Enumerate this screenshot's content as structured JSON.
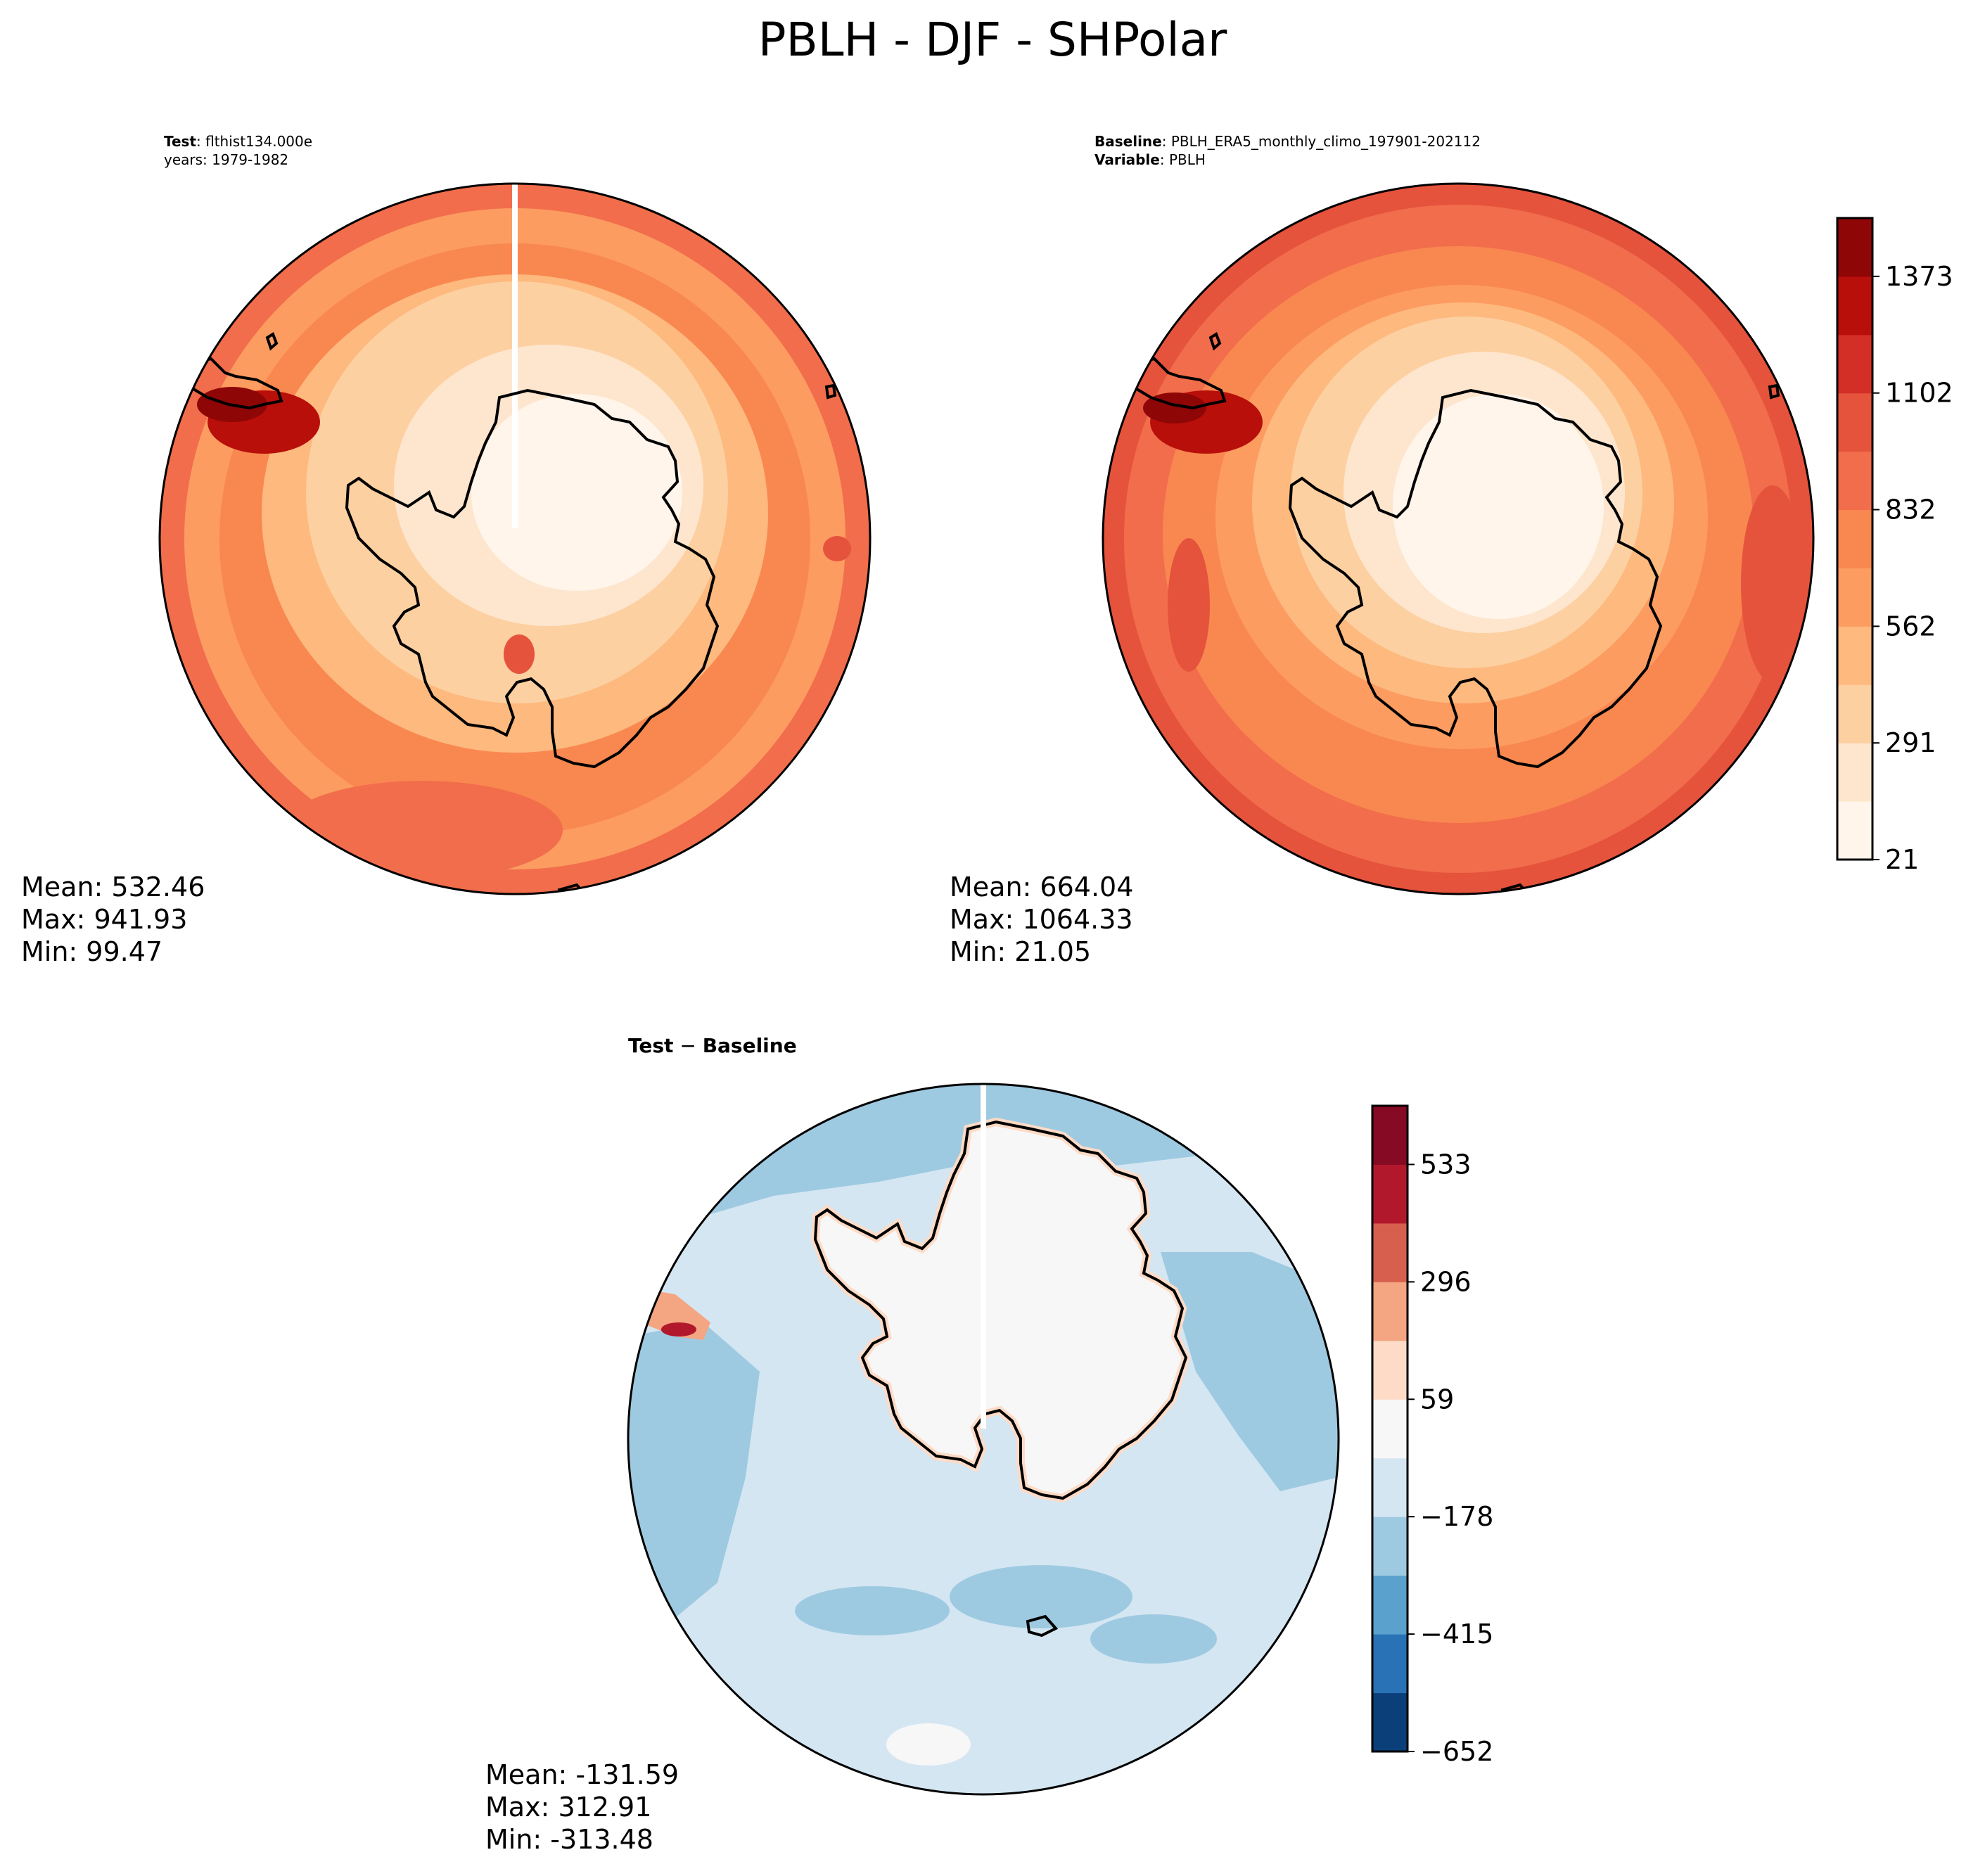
{
  "title": "PBLH - DJF - SHPolar",
  "colors": {
    "land": "#ffffff",
    "coast": "#000000",
    "stripe": "#ffffff"
  },
  "panels": {
    "test": {
      "header": [
        {
          "bold": "Test",
          "text": ": flthist134.000e"
        },
        {
          "bold": "",
          "text": "years: 1979-1982"
        }
      ],
      "stats": {
        "mean": "Mean: 532.46",
        "max": "Max: 941.93",
        "min": "Min: 99.47"
      },
      "dominant_level": "mid-high"
    },
    "baseline": {
      "header": [
        {
          "bold": "Baseline",
          "text": ": PBLH_ERA5_monthly_climo_197901-202112"
        },
        {
          "bold": "Variable",
          "text": ": PBLH"
        }
      ],
      "stats": {
        "mean": "Mean: 664.04",
        "max": "Max: 1064.33",
        "min": "Min: 21.05"
      }
    },
    "diff": {
      "header": [
        {
          "bold": "Test",
          "text": " − ",
          "bold2": "Baseline"
        }
      ],
      "stats": {
        "mean": "Mean: -131.59",
        "max": "Max: 312.91",
        "min": "Min: -313.48"
      }
    }
  },
  "colorbars": {
    "mean": {
      "colors": [
        "#fff5eb",
        "#fee6ce",
        "#fdd0a2",
        "#fdb97e",
        "#fc9c61",
        "#f98850",
        "#f26d4b",
        "#e5533c",
        "#d32f26",
        "#b80f0a",
        "#8e0606"
      ],
      "ticks": [
        "21",
        "291",
        "562",
        "832",
        "1102",
        "1373"
      ],
      "tick_levels": [
        0,
        2,
        4,
        6,
        8,
        10
      ]
    },
    "diff": {
      "colors": [
        "#0b3f7a",
        "#2872b5",
        "#5aa1cd",
        "#9ecae1",
        "#d4e6f2",
        "#f7f7f7",
        "#fddbc7",
        "#f4a582",
        "#d6604d",
        "#b2182b",
        "#870a24"
      ],
      "ticks": [
        "−652",
        "−415",
        "−178",
        "59",
        "296",
        "533"
      ],
      "tick_levels": [
        0,
        2,
        4,
        6,
        8,
        10
      ]
    }
  }
}
